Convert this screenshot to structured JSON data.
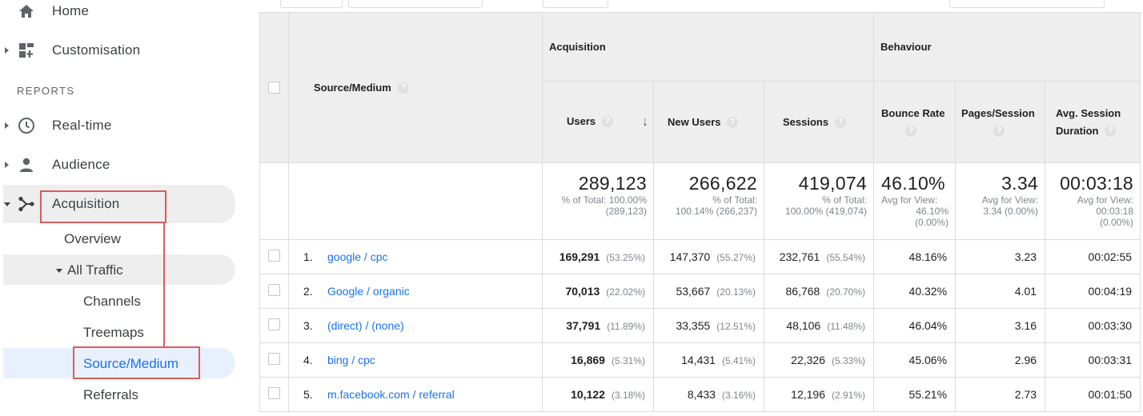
{
  "sidebar": {
    "home_label": "Home",
    "customisation_label": "Customisation",
    "reports_section": "REPORTS",
    "realtime_label": "Real-time",
    "audience_label": "Audience",
    "acquisition_label": "Acquisition",
    "overview_label": "Overview",
    "all_traffic_label": "All Traffic",
    "channels_label": "Channels",
    "treemaps_label": "Treemaps",
    "source_medium_label": "Source/Medium",
    "referrals_label": "Referrals"
  },
  "table": {
    "primary_dimension": "Source/Medium",
    "group_acquisition": "Acquisition",
    "group_behaviour": "Behaviour",
    "columns": {
      "users": "Users",
      "new_users": "New Users",
      "sessions": "Sessions",
      "bounce_rate": "Bounce Rate",
      "pages_session": "Pages/Session",
      "avg_session": "Avg. Session Duration"
    },
    "help_glyph": "?",
    "sort_glyph": "↓",
    "totals": {
      "users": {
        "value": "289,123",
        "l1": "% of Total: 100.00%",
        "l2": "(289,123)"
      },
      "new_users": {
        "value": "266,622",
        "l1": "% of Total:",
        "l2": "100.14% (266,237)"
      },
      "sessions": {
        "value": "419,074",
        "l1": "% of Total:",
        "l2": "100.00% (419,074)"
      },
      "bounce_rate": {
        "value": "46.10%",
        "l1": "Avg for View:",
        "l2": "46.10%",
        "l3": "(0.00%)"
      },
      "pages_session": {
        "value": "3.34",
        "l1": "Avg for View:",
        "l2": "3.34 (0.00%)"
      },
      "avg_session": {
        "value": "00:03:18",
        "l1": "Avg for View:",
        "l2": "00:03:18",
        "l3": "(0.00%)"
      }
    },
    "rows": [
      {
        "rank": "1.",
        "source": "google / cpc",
        "users": "169,291",
        "users_pct": "(53.25%)",
        "new_users": "147,370",
        "new_users_pct": "(55.27%)",
        "sessions": "232,761",
        "sessions_pct": "(55.54%)",
        "bounce_rate": "48.16%",
        "pages_session": "3.23",
        "avg_session": "00:02:55"
      },
      {
        "rank": "2.",
        "source": "Google / organic",
        "users": "70,013",
        "users_pct": "(22.02%)",
        "new_users": "53,667",
        "new_users_pct": "(20.13%)",
        "sessions": "86,768",
        "sessions_pct": "(20.70%)",
        "bounce_rate": "40.32%",
        "pages_session": "4.01",
        "avg_session": "00:04:19"
      },
      {
        "rank": "3.",
        "source": "(direct) / (none)",
        "users": "37,791",
        "users_pct": "(11.89%)",
        "new_users": "33,355",
        "new_users_pct": "(12.51%)",
        "sessions": "48,106",
        "sessions_pct": "(11.48%)",
        "bounce_rate": "46.04%",
        "pages_session": "3.16",
        "avg_session": "00:03:30"
      },
      {
        "rank": "4.",
        "source": "bing / cpc",
        "users": "16,869",
        "users_pct": "(5.31%)",
        "new_users": "14,431",
        "new_users_pct": "(5.41%)",
        "sessions": "22,326",
        "sessions_pct": "(5.33%)",
        "bounce_rate": "45.06%",
        "pages_session": "2.96",
        "avg_session": "00:03:31"
      },
      {
        "rank": "5.",
        "source": "m.facebook.com / referral",
        "users": "10,122",
        "users_pct": "(3.18%)",
        "new_users": "8,433",
        "new_users_pct": "(3.16%)",
        "sessions": "12,196",
        "sessions_pct": "(2.91%)",
        "bounce_rate": "55.21%",
        "pages_session": "2.73",
        "avg_session": "00:01:50"
      }
    ]
  },
  "colors": {
    "link": "#1a73e8",
    "highlight_box": "#e05a5a",
    "header_bg": "#eeeeee"
  }
}
